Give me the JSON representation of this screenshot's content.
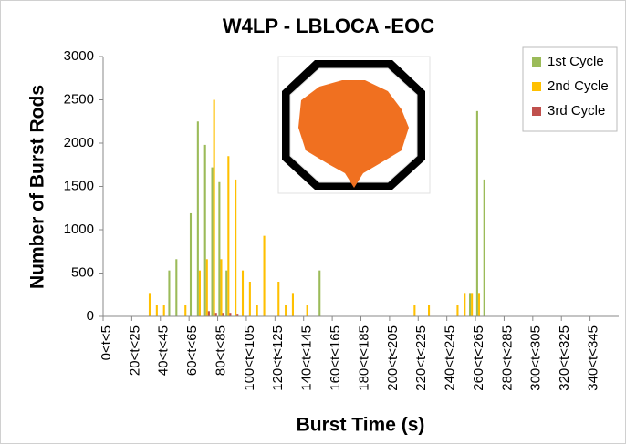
{
  "chart_data": {
    "type": "bar",
    "title": "W4LP - LBLOCA -EOC",
    "xlabel": "Burst Time (s)",
    "ylabel": "Number of Burst Rods",
    "categories": [
      "0<t<5",
      null,
      null,
      null,
      "20<t<25",
      null,
      null,
      null,
      "40<t<45",
      null,
      null,
      null,
      "60<t<65",
      null,
      null,
      null,
      "80<t<85",
      null,
      null,
      null,
      "100<t<105",
      null,
      null,
      null,
      "120<t<125",
      null,
      null,
      null,
      "140<t<145",
      null,
      null,
      null,
      "160<t<165",
      null,
      null,
      null,
      "180<t<185",
      null,
      null,
      null,
      "200<t<205",
      null,
      null,
      null,
      "220<t<225",
      null,
      null,
      null,
      "240<t<245",
      null,
      null,
      null,
      "260<t<265",
      null,
      null,
      null,
      "280<t<285",
      null,
      null,
      null,
      "300<t<305",
      null,
      null,
      null,
      "320<t<325",
      null,
      null,
      null,
      "340<t<345",
      null,
      null,
      null
    ],
    "series": [
      {
        "name": "1st Cycle",
        "color": "#9bbb59",
        "values": [
          0,
          0,
          0,
          0,
          0,
          0,
          0,
          0,
          0,
          530,
          660,
          0,
          1190,
          2250,
          1980,
          1720,
          1550,
          530,
          0,
          0,
          0,
          0,
          0,
          0,
          0,
          0,
          0,
          0,
          0,
          0,
          530,
          0,
          0,
          0,
          0,
          0,
          0,
          0,
          0,
          0,
          0,
          0,
          0,
          0,
          0,
          0,
          0,
          0,
          0,
          0,
          0,
          270,
          2370,
          1580,
          0,
          0,
          0,
          0,
          0,
          0,
          0,
          0,
          0,
          0,
          0,
          0,
          0,
          0,
          0,
          0,
          0,
          0
        ]
      },
      {
        "name": "2nd Cycle",
        "color": "#ffc000",
        "values": [
          0,
          0,
          0,
          0,
          0,
          0,
          270,
          130,
          130,
          0,
          0,
          130,
          0,
          530,
          660,
          2500,
          660,
          1850,
          1580,
          530,
          400,
          130,
          930,
          0,
          400,
          130,
          270,
          0,
          130,
          0,
          0,
          0,
          0,
          0,
          0,
          0,
          0,
          0,
          0,
          0,
          0,
          0,
          0,
          130,
          0,
          130,
          0,
          0,
          0,
          130,
          270,
          270,
          270,
          0,
          0,
          0,
          0,
          0,
          0,
          0,
          0,
          0,
          0,
          0,
          0,
          0,
          0,
          0,
          0,
          0,
          0,
          0
        ]
      },
      {
        "name": "3rd Cycle",
        "color": "#c0504d",
        "values": [
          0,
          0,
          0,
          0,
          0,
          0,
          0,
          0,
          0,
          0,
          0,
          0,
          0,
          0,
          60,
          40,
          40,
          40,
          30,
          0,
          0,
          0,
          0,
          0,
          0,
          0,
          0,
          0,
          0,
          0,
          0,
          0,
          0,
          0,
          0,
          0,
          0,
          0,
          0,
          0,
          0,
          0,
          0,
          0,
          0,
          0,
          0,
          0,
          0,
          0,
          0,
          0,
          0,
          0,
          0,
          0,
          0,
          0,
          0,
          0,
          0,
          0,
          0,
          0,
          0,
          0,
          0,
          0,
          0,
          0,
          0,
          0
        ]
      }
    ],
    "ylim": [
      0,
      3000
    ],
    "yticks": [
      0,
      500,
      1000,
      1500,
      2000,
      2500,
      3000
    ],
    "grid": false,
    "legend": "top-right"
  }
}
